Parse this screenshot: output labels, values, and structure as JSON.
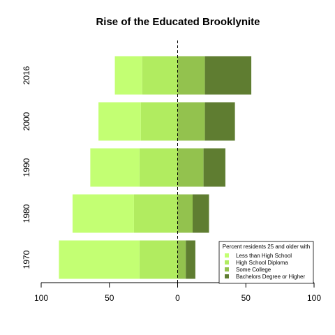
{
  "chart_data": {
    "type": "bar",
    "orientation": "horizontal-diverging",
    "title": "Rise of the Educated Brooklynite",
    "xlabel": "",
    "ylabel": "",
    "xlim": [
      -100,
      100
    ],
    "x_ticks": [
      -100,
      -50,
      0,
      50,
      100
    ],
    "x_tick_labels": [
      "100",
      "50",
      "0",
      "50",
      "100"
    ],
    "categories": [
      "1970",
      "1980",
      "1990",
      "2000",
      "2016"
    ],
    "series": [
      {
        "name": "Less than High School",
        "side": "left",
        "color": "#c3ff73",
        "values": [
          59,
          45,
          36,
          31,
          20
        ]
      },
      {
        "name": "High School Diploma",
        "side": "left",
        "color": "#b1ec60",
        "values": [
          28,
          32,
          28,
          27,
          26
        ]
      },
      {
        "name": "Some College",
        "side": "right",
        "color": "#93c24e",
        "values": [
          6,
          11,
          19,
          20,
          20
        ]
      },
      {
        "name": "Bachelors Degree or Higher",
        "side": "right",
        "color": "#5f7d31",
        "values": [
          7,
          12,
          16,
          22,
          34
        ]
      }
    ],
    "zero_line": "dashed",
    "legend": {
      "title": "Percent residents 25 and older with",
      "position": "bottom-right"
    },
    "grid": false
  }
}
